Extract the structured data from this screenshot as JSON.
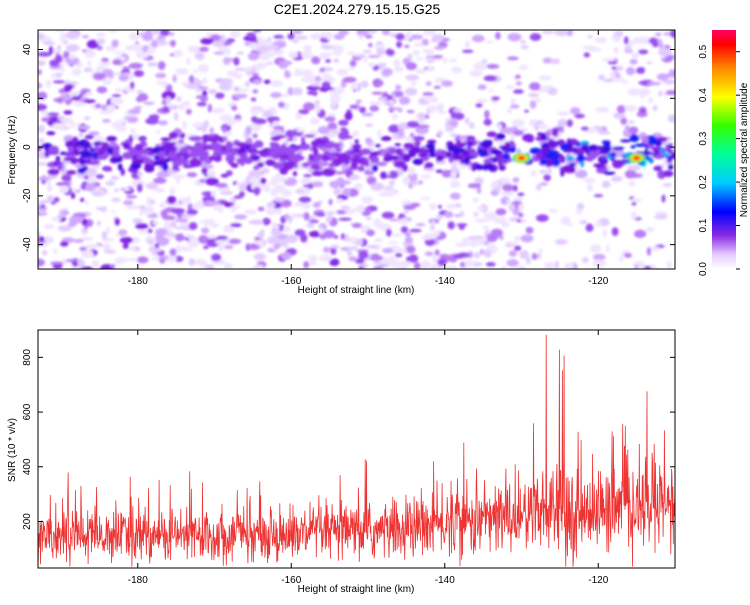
{
  "title": "C2E1.2024.279.15.15.G25",
  "chart_data": [
    {
      "type": "heatmap",
      "xlabel": "Height of straight line (km)",
      "ylabel": "Frequency (Hz)",
      "xlim": [
        -193,
        -110
      ],
      "ylim": [
        -50,
        48
      ],
      "xticks": [
        -180,
        -160,
        -140,
        -120
      ],
      "yticks": [
        -40,
        -20,
        0,
        20,
        40
      ],
      "colorbar": {
        "label": "Normalized spectral amplitude",
        "range": [
          0,
          0.55
        ],
        "ticks": [
          0.0,
          0.1,
          0.2,
          0.3,
          0.4,
          0.5
        ]
      },
      "signal_band": {
        "frequency_center": -3,
        "peak_heights": [
          -130,
          -115
        ]
      },
      "grid": false
    },
    {
      "type": "line",
      "xlabel": "Height of straight line (km)",
      "ylabel": "SNR (10 * v/v)",
      "xlim": [
        -193,
        -110
      ],
      "ylim": [
        30,
        900
      ],
      "xticks": [
        -180,
        -160,
        -140,
        -120
      ],
      "yticks": [
        200,
        400,
        600,
        800
      ],
      "series_color": "#ee3333",
      "baseline_trend": [
        {
          "x": -193,
          "y": 150
        },
        {
          "x": -160,
          "y": 150
        },
        {
          "x": -145,
          "y": 170
        },
        {
          "x": -135,
          "y": 210
        },
        {
          "x": -125,
          "y": 230
        },
        {
          "x": -115,
          "y": 250
        },
        {
          "x": -110,
          "y": 260
        }
      ],
      "grid": false
    }
  ]
}
